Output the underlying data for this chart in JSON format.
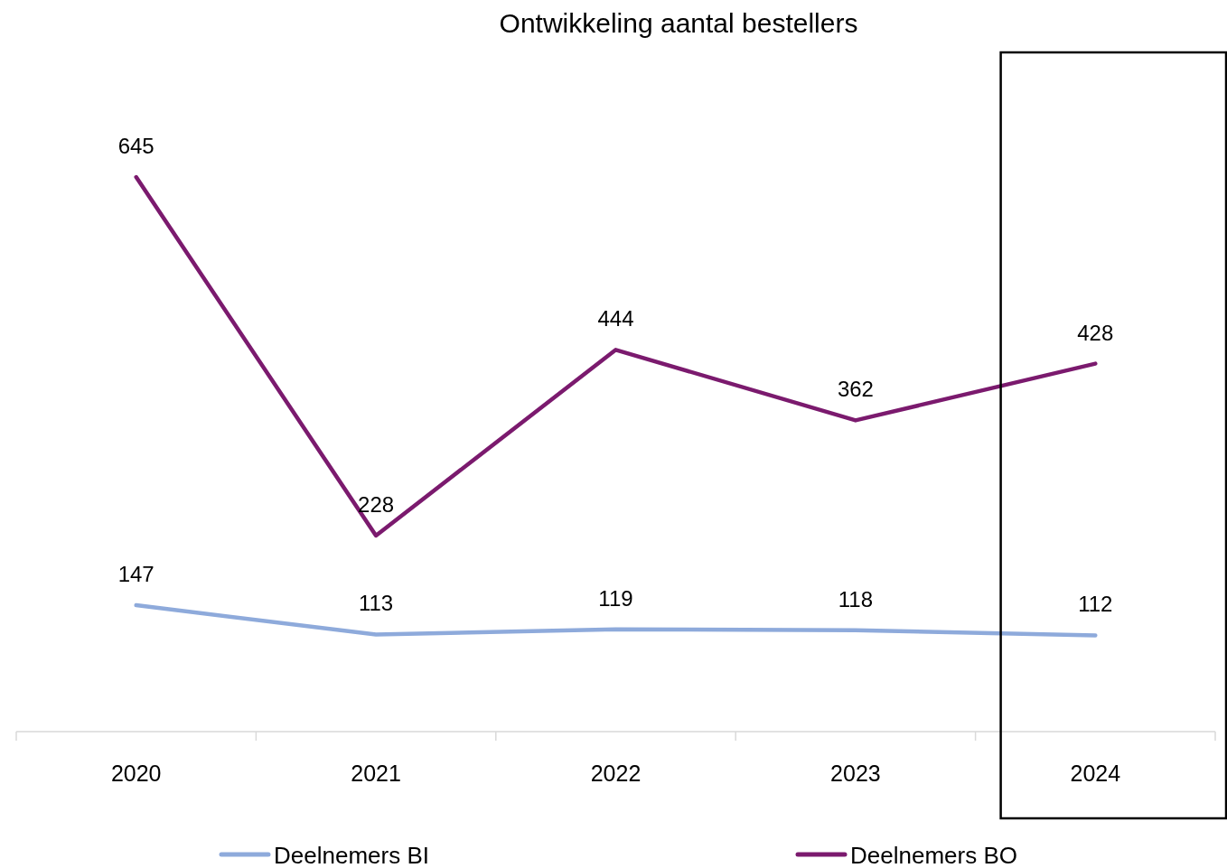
{
  "chart_data": {
    "type": "line",
    "title": "Ontwikkeling aantal bestellers",
    "categories": [
      "2020",
      "2021",
      "2022",
      "2023",
      "2024"
    ],
    "series": [
      {
        "name": "Deelnemers BI",
        "color": "#8eaadb",
        "values": [
          147,
          113,
          119,
          118,
          112
        ]
      },
      {
        "name": "Deelnemers BO",
        "color": "#7b1a6e",
        "values": [
          645,
          228,
          444,
          362,
          428
        ]
      }
    ],
    "tick_labels": "x",
    "data_labels": true,
    "legend": "bottom",
    "marker": "none",
    "line_style": "solid",
    "grid": false
  }
}
